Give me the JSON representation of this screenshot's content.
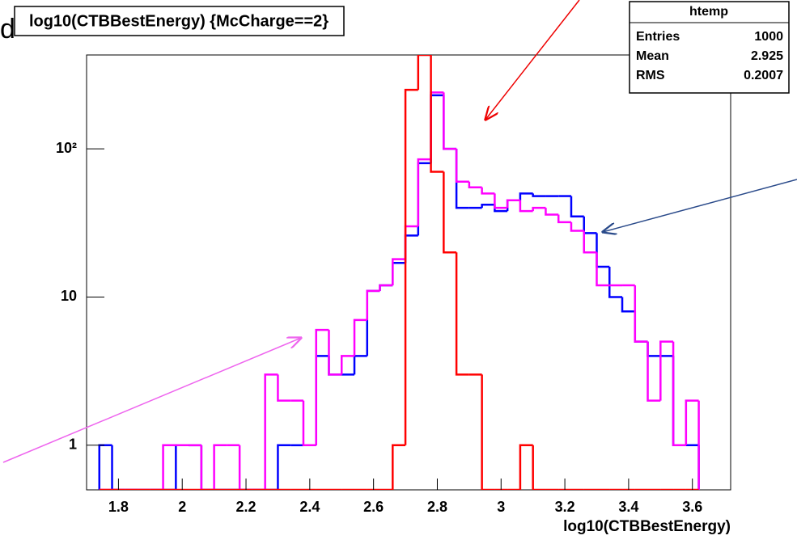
{
  "chart_data": {
    "type": "histogram",
    "title": "log10(CTBBestEnergy) {McCharge==2}",
    "slide_text": "d",
    "xlabel": "log10(CTBBestEnergy)",
    "stats": {
      "title": "htemp",
      "rows": [
        [
          "Entries",
          "1000"
        ],
        [
          "Mean",
          "2.925"
        ],
        [
          "RMS",
          "0.2007"
        ]
      ]
    },
    "log_y": true,
    "xlim": [
      1.7,
      3.72
    ],
    "ylim": [
      0.5,
      430
    ],
    "xticks": [
      1.8,
      2,
      2.2,
      2.4,
      2.6,
      2.8,
      3,
      3.2,
      3.4,
      3.6
    ],
    "yticks": [
      1,
      10,
      {
        "value": 100,
        "label": "10²"
      }
    ],
    "bins": [
      1.74,
      1.78,
      1.82,
      1.86,
      1.9,
      1.94,
      1.98,
      2.02,
      2.06,
      2.1,
      2.14,
      2.18,
      2.22,
      2.26,
      2.3,
      2.34,
      2.38,
      2.42,
      2.46,
      2.5,
      2.54,
      2.58,
      2.62,
      2.66,
      2.7,
      2.74,
      2.78,
      2.82,
      2.86,
      2.9,
      2.94,
      2.98,
      3.02,
      3.06,
      3.1,
      3.14,
      3.18,
      3.22,
      3.26,
      3.3,
      3.34,
      3.38,
      3.42,
      3.46,
      3.5,
      3.54,
      3.58,
      3.62
    ],
    "series": [
      {
        "color": "#0000ff",
        "values": [
          1,
          0,
          0,
          0,
          0,
          0,
          1,
          1,
          0,
          0,
          0,
          0,
          0,
          0,
          1,
          1,
          1,
          4,
          3,
          3,
          4,
          11,
          12,
          17,
          26,
          80,
          230,
          100,
          40,
          40,
          42,
          38,
          45,
          50,
          48,
          48,
          48,
          35,
          27,
          16,
          10,
          8,
          5,
          4,
          4,
          1,
          1,
          0
        ]
      },
      {
        "color": "#ff00ff",
        "values": [
          0,
          0,
          0,
          0,
          0,
          1,
          1,
          1,
          0,
          1,
          1,
          0,
          0,
          3,
          2,
          2,
          1,
          6,
          3,
          4,
          7,
          11,
          12,
          18,
          30,
          85,
          240,
          100,
          60,
          55,
          50,
          40,
          45,
          38,
          40,
          36,
          32,
          28,
          20,
          12,
          12,
          12,
          5,
          2,
          5,
          1,
          2,
          0
        ]
      },
      {
        "color": "#ff0000",
        "values": [
          0,
          0,
          0,
          0,
          0,
          0,
          0,
          0,
          0,
          0,
          0,
          0,
          0,
          0,
          0,
          0,
          0,
          0,
          0,
          0,
          0,
          0,
          0,
          1,
          250,
          430,
          70,
          20,
          3,
          3,
          0,
          0,
          0,
          1,
          0,
          0,
          0,
          0,
          0,
          0,
          0,
          0,
          0,
          0,
          0,
          0,
          0,
          0
        ]
      }
    ]
  }
}
